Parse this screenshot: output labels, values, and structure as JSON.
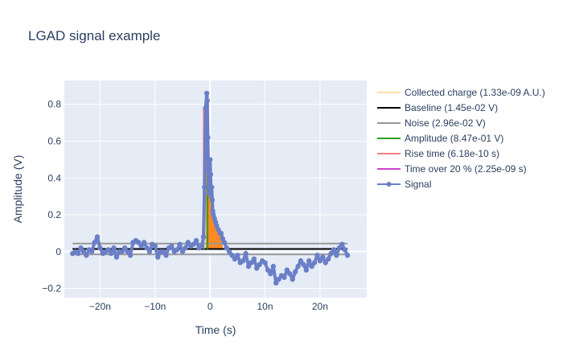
{
  "chart_data": {
    "type": "line",
    "title": "LGAD signal example",
    "xlabel": "Time (s)",
    "ylabel": "Amplitude (V)",
    "xlim": [
      -2.65e-08,
      2.85e-08
    ],
    "ylim": [
      -0.25,
      0.93
    ],
    "x_ticks": [
      {
        "value": -2e-08,
        "label": "−20n"
      },
      {
        "value": -1e-08,
        "label": "−10n"
      },
      {
        "value": 0,
        "label": "0"
      },
      {
        "value": 1e-08,
        "label": "10n"
      },
      {
        "value": 2e-08,
        "label": "20n"
      }
    ],
    "y_ticks": [
      {
        "value": -0.2,
        "label": "−0.2"
      },
      {
        "value": 0,
        "label": "0"
      },
      {
        "value": 0.2,
        "label": "0.2"
      },
      {
        "value": 0.4,
        "label": "0.4"
      },
      {
        "value": 0.6,
        "label": "0.6"
      },
      {
        "value": 0.8,
        "label": "0.8"
      }
    ],
    "grid": true,
    "legend_position": "right",
    "legend": [
      {
        "name": "Collected charge (1.33e-09 A.U.)",
        "color": "#ffdead"
      },
      {
        "name": "Baseline (1.45e-02 V)",
        "color": "#000000"
      },
      {
        "name": "Noise (2.96e-02 V)",
        "color": "#999999"
      },
      {
        "name": "Amplitude (8.47e-01 V)",
        "color": "#2ca02c"
      },
      {
        "name": "Rise time (6.18e-10 s)",
        "color": "#f08080"
      },
      {
        "name": "Time over 20 % (2.25e-09 s)",
        "color": "#cc44cc"
      },
      {
        "name": "Signal",
        "color": "#6a7fc7"
      }
    ],
    "baseline": {
      "value": 0.0145,
      "x_range": [
        -2.5e-08,
        2.5e-08
      ]
    },
    "noise_band": {
      "upper": 0.0441,
      "lower": -0.0151,
      "x_range": [
        -2.5e-08,
        2.5e-08
      ]
    },
    "amplitude_marker": {
      "x": -4.5e-10,
      "y_from": 0.0145,
      "y_to": 0.8615
    },
    "rise_time_marker": {
      "x_from": -1.15e-09,
      "x_to": -5.3e-10,
      "y_from": 0.0145,
      "y_to": 0.78
    },
    "collected_charge_fill": {
      "x_from": -9e-10,
      "x_to": 2.5e-09,
      "baseline": 0.0145,
      "color": "#ff7f0e"
    },
    "signal": {
      "name": "Signal",
      "color": "#6a7fc7",
      "x": [
        -2.5e-08,
        -2.45e-08,
        -2.4e-08,
        -2.35e-08,
        -2.3e-08,
        -2.25e-08,
        -2.2e-08,
        -2.15e-08,
        -2.1e-08,
        -2.05e-08,
        -2e-08,
        -1.95e-08,
        -1.9e-08,
        -1.85e-08,
        -1.8e-08,
        -1.75e-08,
        -1.7e-08,
        -1.65e-08,
        -1.6e-08,
        -1.55e-08,
        -1.5e-08,
        -1.45e-08,
        -1.4e-08,
        -1.35e-08,
        -1.3e-08,
        -1.25e-08,
        -1.2e-08,
        -1.15e-08,
        -1.1e-08,
        -1.05e-08,
        -1e-08,
        -9.5e-09,
        -9e-09,
        -8.5e-09,
        -8e-09,
        -7.5e-09,
        -7e-09,
        -6.5e-09,
        -6e-09,
        -5.5e-09,
        -5e-09,
        -4.5e-09,
        -4e-09,
        -3.5e-09,
        -3e-09,
        -2.5e-09,
        -2e-09,
        -1.5e-09,
        -1.2e-09,
        -1e-09,
        -8e-10,
        -6e-10,
        -5e-10,
        -4e-10,
        -3e-10,
        -2e-10,
        -1e-10,
        0,
        1e-10,
        2e-10,
        3e-10,
        4e-10,
        5e-10,
        6e-10,
        8e-10,
        1e-09,
        1.2e-09,
        1.5e-09,
        1.8e-09,
        2e-09,
        2.3e-09,
        2.6e-09,
        3e-09,
        3.5e-09,
        4e-09,
        4.5e-09,
        5e-09,
        5.5e-09,
        6e-09,
        6.5e-09,
        7e-09,
        7.5e-09,
        8e-09,
        8.5e-09,
        9e-09,
        9.5e-09,
        1e-08,
        1.05e-08,
        1.1e-08,
        1.15e-08,
        1.2e-08,
        1.25e-08,
        1.3e-08,
        1.35e-08,
        1.4e-08,
        1.45e-08,
        1.5e-08,
        1.55e-08,
        1.6e-08,
        1.65e-08,
        1.7e-08,
        1.75e-08,
        1.8e-08,
        1.85e-08,
        1.9e-08,
        1.95e-08,
        2e-08,
        2.05e-08,
        2.1e-08,
        2.15e-08,
        2.2e-08,
        2.25e-08,
        2.3e-08,
        2.35e-08,
        2.4e-08,
        2.45e-08,
        2.5e-08
      ],
      "y": [
        -0.01,
        0.0,
        -0.01,
        0.02,
        0.0,
        -0.02,
        0.01,
        0.0,
        0.05,
        0.08,
        0.02,
        -0.01,
        0.0,
        0.01,
        -0.01,
        0.02,
        -0.03,
        0.0,
        0.0,
        0.02,
        0.0,
        -0.02,
        0.05,
        0.06,
        0.05,
        0.03,
        0.05,
        0.02,
        0.0,
        0.04,
        0.03,
        -0.03,
        0.0,
        0.0,
        -0.02,
        0.02,
        0.03,
        0.0,
        0.01,
        0.04,
        0.0,
        0.02,
        0.05,
        0.03,
        0.04,
        0.06,
        0.02,
        0.03,
        0.08,
        0.35,
        0.78,
        0.86,
        0.82,
        0.62,
        0.45,
        0.32,
        0.38,
        0.5,
        0.42,
        0.3,
        0.35,
        0.28,
        0.22,
        0.2,
        0.18,
        0.16,
        0.14,
        0.12,
        0.1,
        0.1,
        0.07,
        0.05,
        0.02,
        0.0,
        -0.02,
        -0.04,
        -0.02,
        -0.06,
        -0.05,
        -0.01,
        -0.08,
        -0.06,
        -0.04,
        -0.09,
        -0.07,
        -0.05,
        -0.06,
        -0.1,
        -0.12,
        -0.08,
        -0.17,
        -0.15,
        -0.13,
        -0.14,
        -0.1,
        -0.12,
        -0.15,
        -0.11,
        -0.08,
        -0.05,
        -0.07,
        -0.1,
        -0.05,
        -0.08,
        -0.06,
        -0.02,
        -0.05,
        -0.03,
        -0.06,
        -0.04,
        -0.01,
        0.01,
        -0.02,
        0.02,
        0.04,
        0.01,
        -0.02
      ]
    }
  }
}
